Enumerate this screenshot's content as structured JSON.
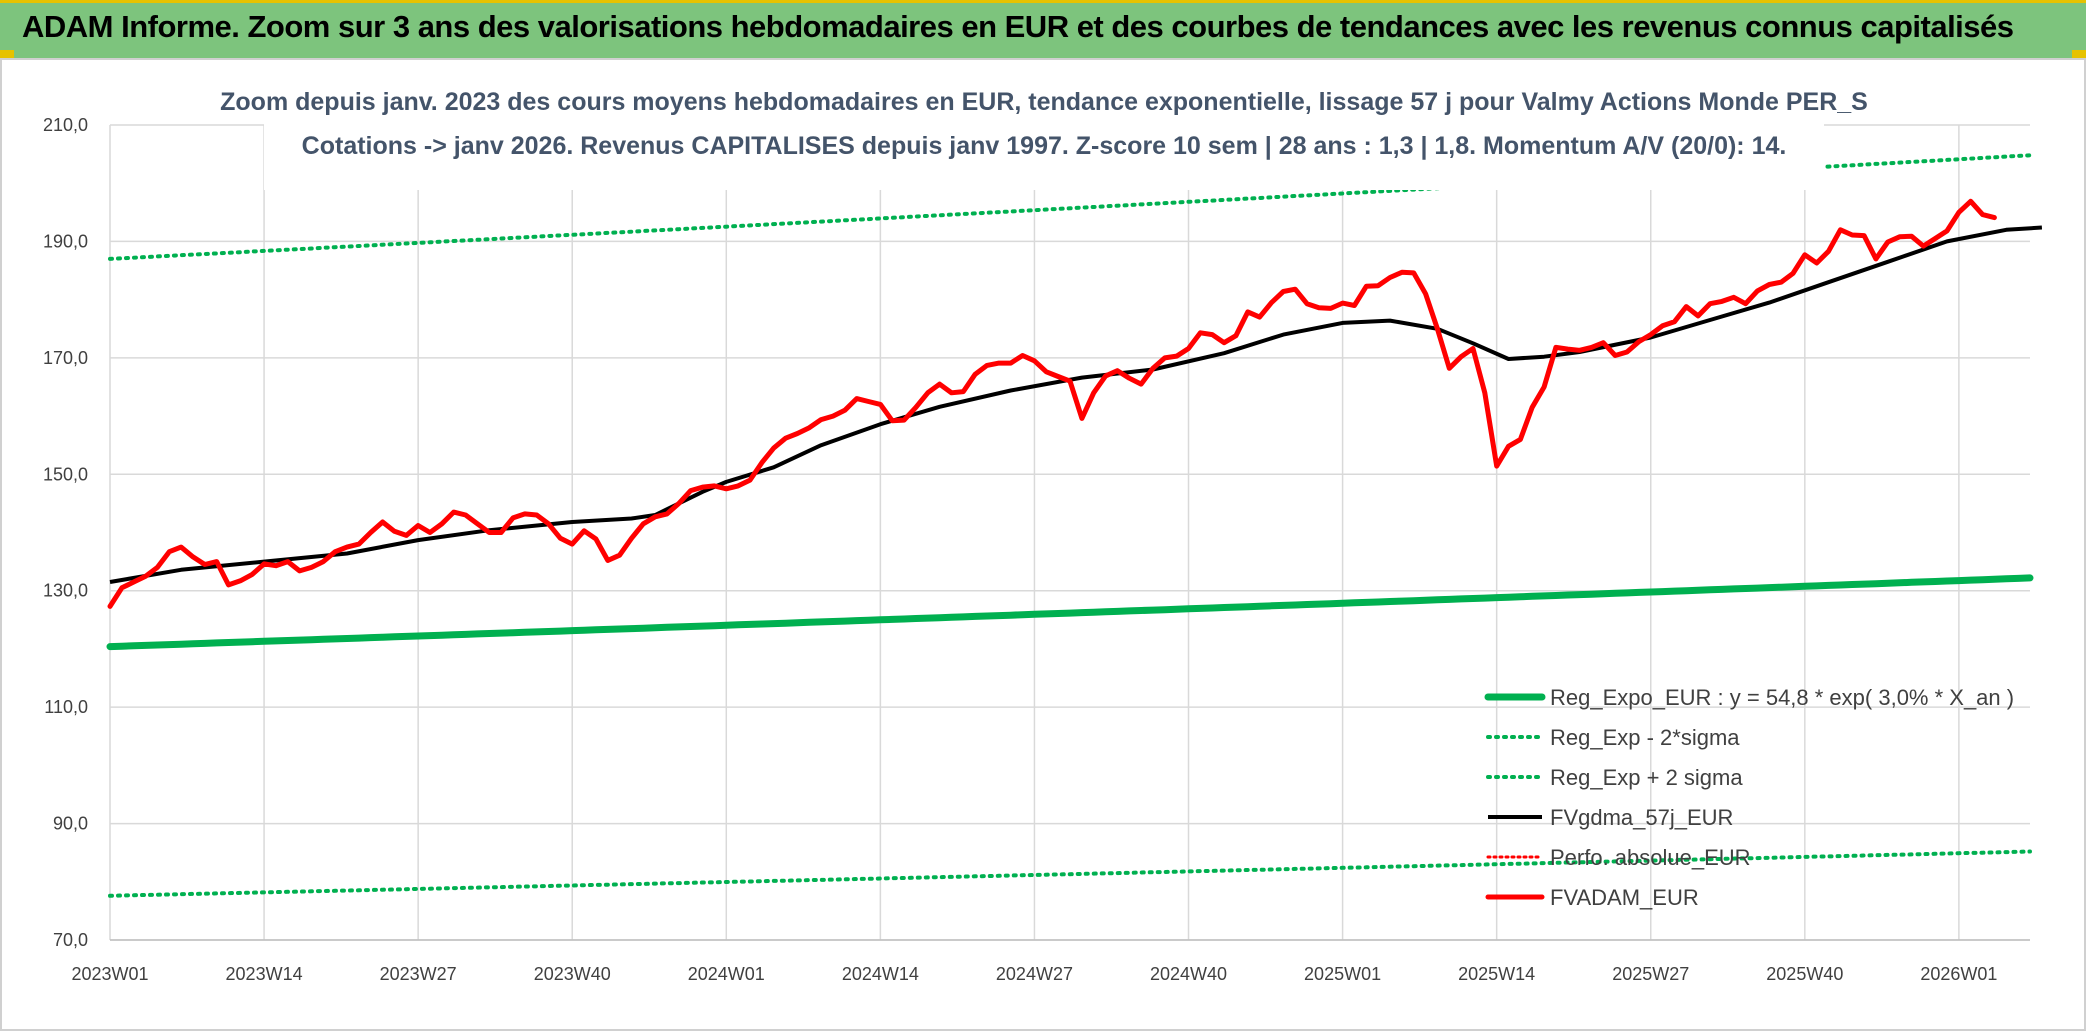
{
  "header": {
    "title": "ADAM Informe. Zoom sur 3 ans des valorisations hebdomadaires en EUR et des courbes de tendances avec les revenus connus capitalisés"
  },
  "chart_data": {
    "type": "line",
    "title_line1": "Zoom depuis janv. 2023 des cours moyens hebdomadaires en EUR, tendance exponentielle, lissage 57 j pour Valmy Actions Monde PER_S",
    "title_line2": "Cotations -> janv 2026. Revenus CAPITALISES depuis janv 1997. Z-score 10 sem | 28 ans : 1,3 | 1,8. Momentum A/V (20/0): 14.",
    "ylim": [
      70,
      210
    ],
    "y_ticks": [
      "70,0",
      "90,0",
      "110,0",
      "130,0",
      "150,0",
      "170,0",
      "190,0",
      "210,0"
    ],
    "y_tick_values": [
      70,
      90,
      110,
      130,
      150,
      170,
      190,
      210
    ],
    "x_ticks": [
      "2023W01",
      "2023W14",
      "2023W27",
      "2023W40",
      "2024W01",
      "2024W14",
      "2024W27",
      "2024W40",
      "2025W01",
      "2025W14",
      "2025W27",
      "2025W40",
      "2026W01"
    ],
    "x_tick_index": [
      0,
      13,
      26,
      39,
      52,
      65,
      78,
      91,
      104,
      117,
      130,
      143,
      156
    ],
    "x_count": 163,
    "series": [
      {
        "name": "Reg_Expo_EUR : y = 54,8 * exp( 3,0% *  X_an )",
        "color": "#00b050",
        "style": "solid-thick",
        "start": 120.4,
        "end": 132.2
      },
      {
        "name": "Reg_Exp - 2*sigma",
        "color": "#00b050",
        "style": "dotted",
        "start": 77.6,
        "end": 85.2
      },
      {
        "name": "Reg_Exp + 2 sigma",
        "color": "#00b050",
        "style": "dotted",
        "start": 187.0,
        "end": 204.8
      },
      {
        "name": "FVgdma_57j_EUR",
        "color": "#000000",
        "style": "solid",
        "points": [
          [
            0,
            131.5
          ],
          [
            6,
            133.6
          ],
          [
            13,
            135.0
          ],
          [
            20,
            136.4
          ],
          [
            26,
            138.7
          ],
          [
            32,
            140.4
          ],
          [
            39,
            141.8
          ],
          [
            44,
            142.4
          ],
          [
            46,
            143.0
          ],
          [
            50,
            147.0
          ],
          [
            52,
            148.7
          ],
          [
            56,
            151.2
          ],
          [
            60,
            155.0
          ],
          [
            65,
            158.6
          ],
          [
            70,
            161.6
          ],
          [
            76,
            164.4
          ],
          [
            82,
            166.6
          ],
          [
            88,
            168.0
          ],
          [
            94,
            170.8
          ],
          [
            99,
            174.0
          ],
          [
            104,
            176.0
          ],
          [
            108,
            176.4
          ],
          [
            112,
            175.0
          ],
          [
            115,
            172.5
          ],
          [
            118,
            169.8
          ],
          [
            121,
            170.2
          ],
          [
            124,
            171.0
          ],
          [
            130,
            173.5
          ],
          [
            135,
            176.5
          ],
          [
            140,
            179.5
          ],
          [
            145,
            183.0
          ],
          [
            150,
            186.5
          ],
          [
            155,
            190.0
          ],
          [
            160,
            192.0
          ],
          [
            163,
            192.4
          ]
        ]
      },
      {
        "name": "Perfo. absolue_EUR",
        "color": "#ff0000",
        "style": "dotted-hidden"
      },
      {
        "name": "FVADAM_EUR",
        "color": "#ff0000",
        "style": "solid-thick",
        "points": [
          [
            0,
            127.3
          ],
          [
            1,
            130.5
          ],
          [
            2,
            131.5
          ],
          [
            3,
            132.5
          ],
          [
            4,
            134.0
          ],
          [
            5,
            136.7
          ],
          [
            6,
            137.5
          ],
          [
            7,
            135.8
          ],
          [
            8,
            134.5
          ],
          [
            9,
            135.0
          ],
          [
            10,
            131.0
          ],
          [
            11,
            131.7
          ],
          [
            12,
            132.8
          ],
          [
            13,
            134.6
          ],
          [
            14,
            134.3
          ],
          [
            15,
            135.0
          ],
          [
            16,
            133.4
          ],
          [
            17,
            134.0
          ],
          [
            18,
            135.0
          ],
          [
            19,
            136.7
          ],
          [
            20,
            137.5
          ],
          [
            21,
            138.0
          ],
          [
            22,
            140.0
          ],
          [
            23,
            141.8
          ],
          [
            24,
            140.2
          ],
          [
            25,
            139.5
          ],
          [
            26,
            141.2
          ],
          [
            27,
            140.0
          ],
          [
            28,
            141.5
          ],
          [
            29,
            143.5
          ],
          [
            30,
            143.0
          ],
          [
            31,
            141.5
          ],
          [
            32,
            140.0
          ],
          [
            33,
            140.0
          ],
          [
            34,
            142.5
          ],
          [
            35,
            143.2
          ],
          [
            36,
            143.0
          ],
          [
            37,
            141.5
          ],
          [
            38,
            139.0
          ],
          [
            39,
            138.0
          ],
          [
            40,
            140.3
          ],
          [
            41,
            138.9
          ],
          [
            42,
            135.2
          ],
          [
            43,
            136.1
          ],
          [
            44,
            139.0
          ],
          [
            45,
            141.5
          ],
          [
            46,
            142.7
          ],
          [
            47,
            143.2
          ],
          [
            48,
            145.0
          ],
          [
            49,
            147.2
          ],
          [
            50,
            147.8
          ],
          [
            51,
            148.0
          ],
          [
            52,
            147.5
          ],
          [
            53,
            148.0
          ],
          [
            54,
            149.0
          ],
          [
            55,
            152.0
          ],
          [
            56,
            154.5
          ],
          [
            57,
            156.2
          ],
          [
            58,
            157.0
          ],
          [
            59,
            158.0
          ],
          [
            60,
            159.4
          ],
          [
            61,
            160.0
          ],
          [
            62,
            161.0
          ],
          [
            63,
            163.0
          ],
          [
            64,
            162.5
          ],
          [
            65,
            162.0
          ],
          [
            66,
            159.2
          ],
          [
            67,
            159.3
          ],
          [
            68,
            161.5
          ],
          [
            69,
            164.0
          ],
          [
            70,
            165.5
          ],
          [
            71,
            164.0
          ],
          [
            72,
            164.2
          ],
          [
            73,
            167.2
          ],
          [
            74,
            168.7
          ],
          [
            75,
            169.1
          ],
          [
            76,
            169.1
          ],
          [
            77,
            170.4
          ],
          [
            78,
            169.5
          ],
          [
            79,
            167.6
          ],
          [
            80,
            166.8
          ],
          [
            81,
            166.0
          ],
          [
            82,
            159.6
          ],
          [
            83,
            164.0
          ],
          [
            84,
            166.9
          ],
          [
            85,
            167.8
          ],
          [
            86,
            166.5
          ],
          [
            87,
            165.5
          ],
          [
            88,
            168.2
          ],
          [
            89,
            170.0
          ],
          [
            90,
            170.3
          ],
          [
            91,
            171.6
          ],
          [
            92,
            174.3
          ],
          [
            93,
            174.0
          ],
          [
            94,
            172.6
          ],
          [
            95,
            173.8
          ],
          [
            96,
            177.9
          ],
          [
            97,
            177.0
          ],
          [
            98,
            179.5
          ],
          [
            99,
            181.4
          ],
          [
            100,
            181.8
          ],
          [
            101,
            179.3
          ],
          [
            102,
            178.6
          ],
          [
            103,
            178.5
          ],
          [
            104,
            179.4
          ],
          [
            105,
            179.0
          ],
          [
            106,
            182.3
          ],
          [
            107,
            182.4
          ],
          [
            108,
            183.8
          ],
          [
            109,
            184.7
          ],
          [
            110,
            184.6
          ],
          [
            111,
            181.0
          ],
          [
            112,
            175.0
          ],
          [
            113,
            168.2
          ],
          [
            114,
            170.2
          ],
          [
            115,
            171.6
          ],
          [
            116,
            164.0
          ],
          [
            117,
            151.4
          ],
          [
            118,
            154.8
          ],
          [
            119,
            156.0
          ],
          [
            120,
            161.5
          ],
          [
            121,
            165.0
          ],
          [
            122,
            171.8
          ],
          [
            123,
            171.5
          ],
          [
            124,
            171.3
          ],
          [
            125,
            171.8
          ],
          [
            126,
            172.6
          ],
          [
            127,
            170.4
          ],
          [
            128,
            171.0
          ],
          [
            129,
            172.8
          ],
          [
            130,
            174.0
          ],
          [
            131,
            175.5
          ],
          [
            132,
            176.2
          ],
          [
            133,
            178.8
          ],
          [
            134,
            177.2
          ],
          [
            135,
            179.3
          ],
          [
            136,
            179.7
          ],
          [
            137,
            180.4
          ],
          [
            138,
            179.3
          ],
          [
            139,
            181.5
          ],
          [
            140,
            182.6
          ],
          [
            141,
            183.0
          ],
          [
            142,
            184.5
          ],
          [
            143,
            187.7
          ],
          [
            144,
            186.3
          ],
          [
            145,
            188.3
          ],
          [
            146,
            192.0
          ],
          [
            147,
            191.1
          ],
          [
            148,
            191.0
          ],
          [
            149,
            187.0
          ],
          [
            150,
            189.9
          ],
          [
            151,
            190.8
          ],
          [
            152,
            190.9
          ],
          [
            153,
            189.2
          ],
          [
            154,
            190.5
          ],
          [
            155,
            191.8
          ],
          [
            156,
            195.0
          ],
          [
            157,
            196.9
          ],
          [
            158,
            194.6
          ],
          [
            159,
            194.1
          ]
        ]
      }
    ]
  }
}
